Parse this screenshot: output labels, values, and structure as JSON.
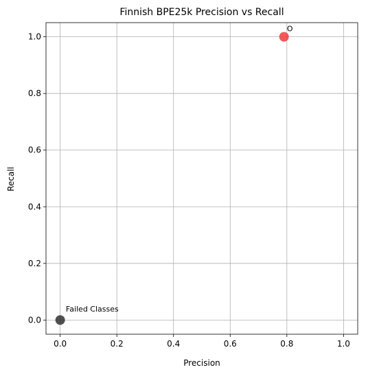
{
  "chart_data": {
    "type": "scatter",
    "title": "Finnish BPE25k Precision vs Recall",
    "xlabel": "Precision",
    "ylabel": "Recall",
    "xlim": [
      -0.05,
      1.05
    ],
    "ylim": [
      -0.05,
      1.05
    ],
    "xticks": [
      "0.0",
      "0.2",
      "0.4",
      "0.6",
      "0.8",
      "1.0"
    ],
    "yticks": [
      "0.0",
      "0.2",
      "0.4",
      "0.6",
      "0.8",
      "1.0"
    ],
    "grid": true,
    "points": [
      {
        "x": 0.79,
        "y": 1.0,
        "color": "#f03c3c",
        "label": "O",
        "label_dx": 0.01,
        "label_dy": 0.02
      },
      {
        "x": 0.0,
        "y": 0.0,
        "color": "#333333",
        "label": "Failed Classes",
        "label_dx": 0.02,
        "label_dy": 0.03
      }
    ]
  }
}
